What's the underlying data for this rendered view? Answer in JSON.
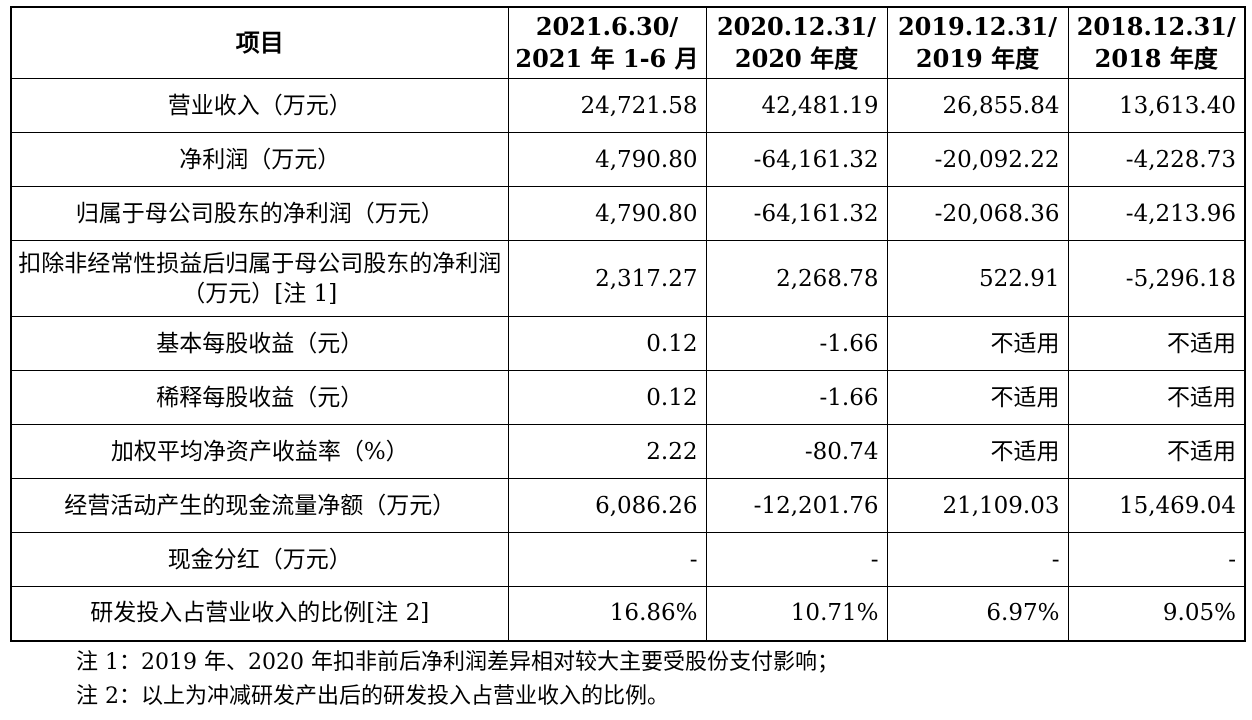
{
  "table": {
    "headers": [
      "项目",
      "2021.6.30/\n2021 年 1-6 月",
      "2020.12.31/\n2020 年度",
      "2019.12.31/\n2019 年度",
      "2018.12.31/\n2018 年度"
    ],
    "rows": [
      {
        "label": "营业收入（万元）",
        "values": [
          "24,721.58",
          "42,481.19",
          "26,855.84",
          "13,613.40"
        ]
      },
      {
        "label": "净利润（万元）",
        "values": [
          "4,790.80",
          "-64,161.32",
          "-20,092.22",
          "-4,228.73"
        ]
      },
      {
        "label": "归属于母公司股东的净利润（万元）",
        "values": [
          "4,790.80",
          "-64,161.32",
          "-20,068.36",
          "-4,213.96"
        ]
      },
      {
        "label": "扣除非经常性损益后归属于母公司股东的净利润（万元）[注 1]",
        "values": [
          "2,317.27",
          "2,268.78",
          "522.91",
          "-5,296.18"
        ]
      },
      {
        "label": "基本每股收益（元）",
        "values": [
          "0.12",
          "-1.66",
          "不适用",
          "不适用"
        ]
      },
      {
        "label": "稀释每股收益（元）",
        "values": [
          "0.12",
          "-1.66",
          "不适用",
          "不适用"
        ]
      },
      {
        "label": "加权平均净资产收益率（%）",
        "values": [
          "2.22",
          "-80.74",
          "不适用",
          "不适用"
        ]
      },
      {
        "label": "经营活动产生的现金流量净额（万元）",
        "values": [
          "6,086.26",
          "-12,201.76",
          "21,109.03",
          "15,469.04"
        ]
      },
      {
        "label": "现金分红（万元）",
        "values": [
          "-",
          "-",
          "-",
          "-"
        ]
      },
      {
        "label": "研发投入占营业收入的比例[注 2]",
        "values": [
          "16.86%",
          "10.71%",
          "6.97%",
          "9.05%"
        ]
      }
    ]
  },
  "notes": [
    "注 1：2019 年、2020 年扣非前后净利润差异相对较大主要受股份支付影响；",
    "注 2：以上为冲减研发产出后的研发投入占营业收入的比例。"
  ]
}
